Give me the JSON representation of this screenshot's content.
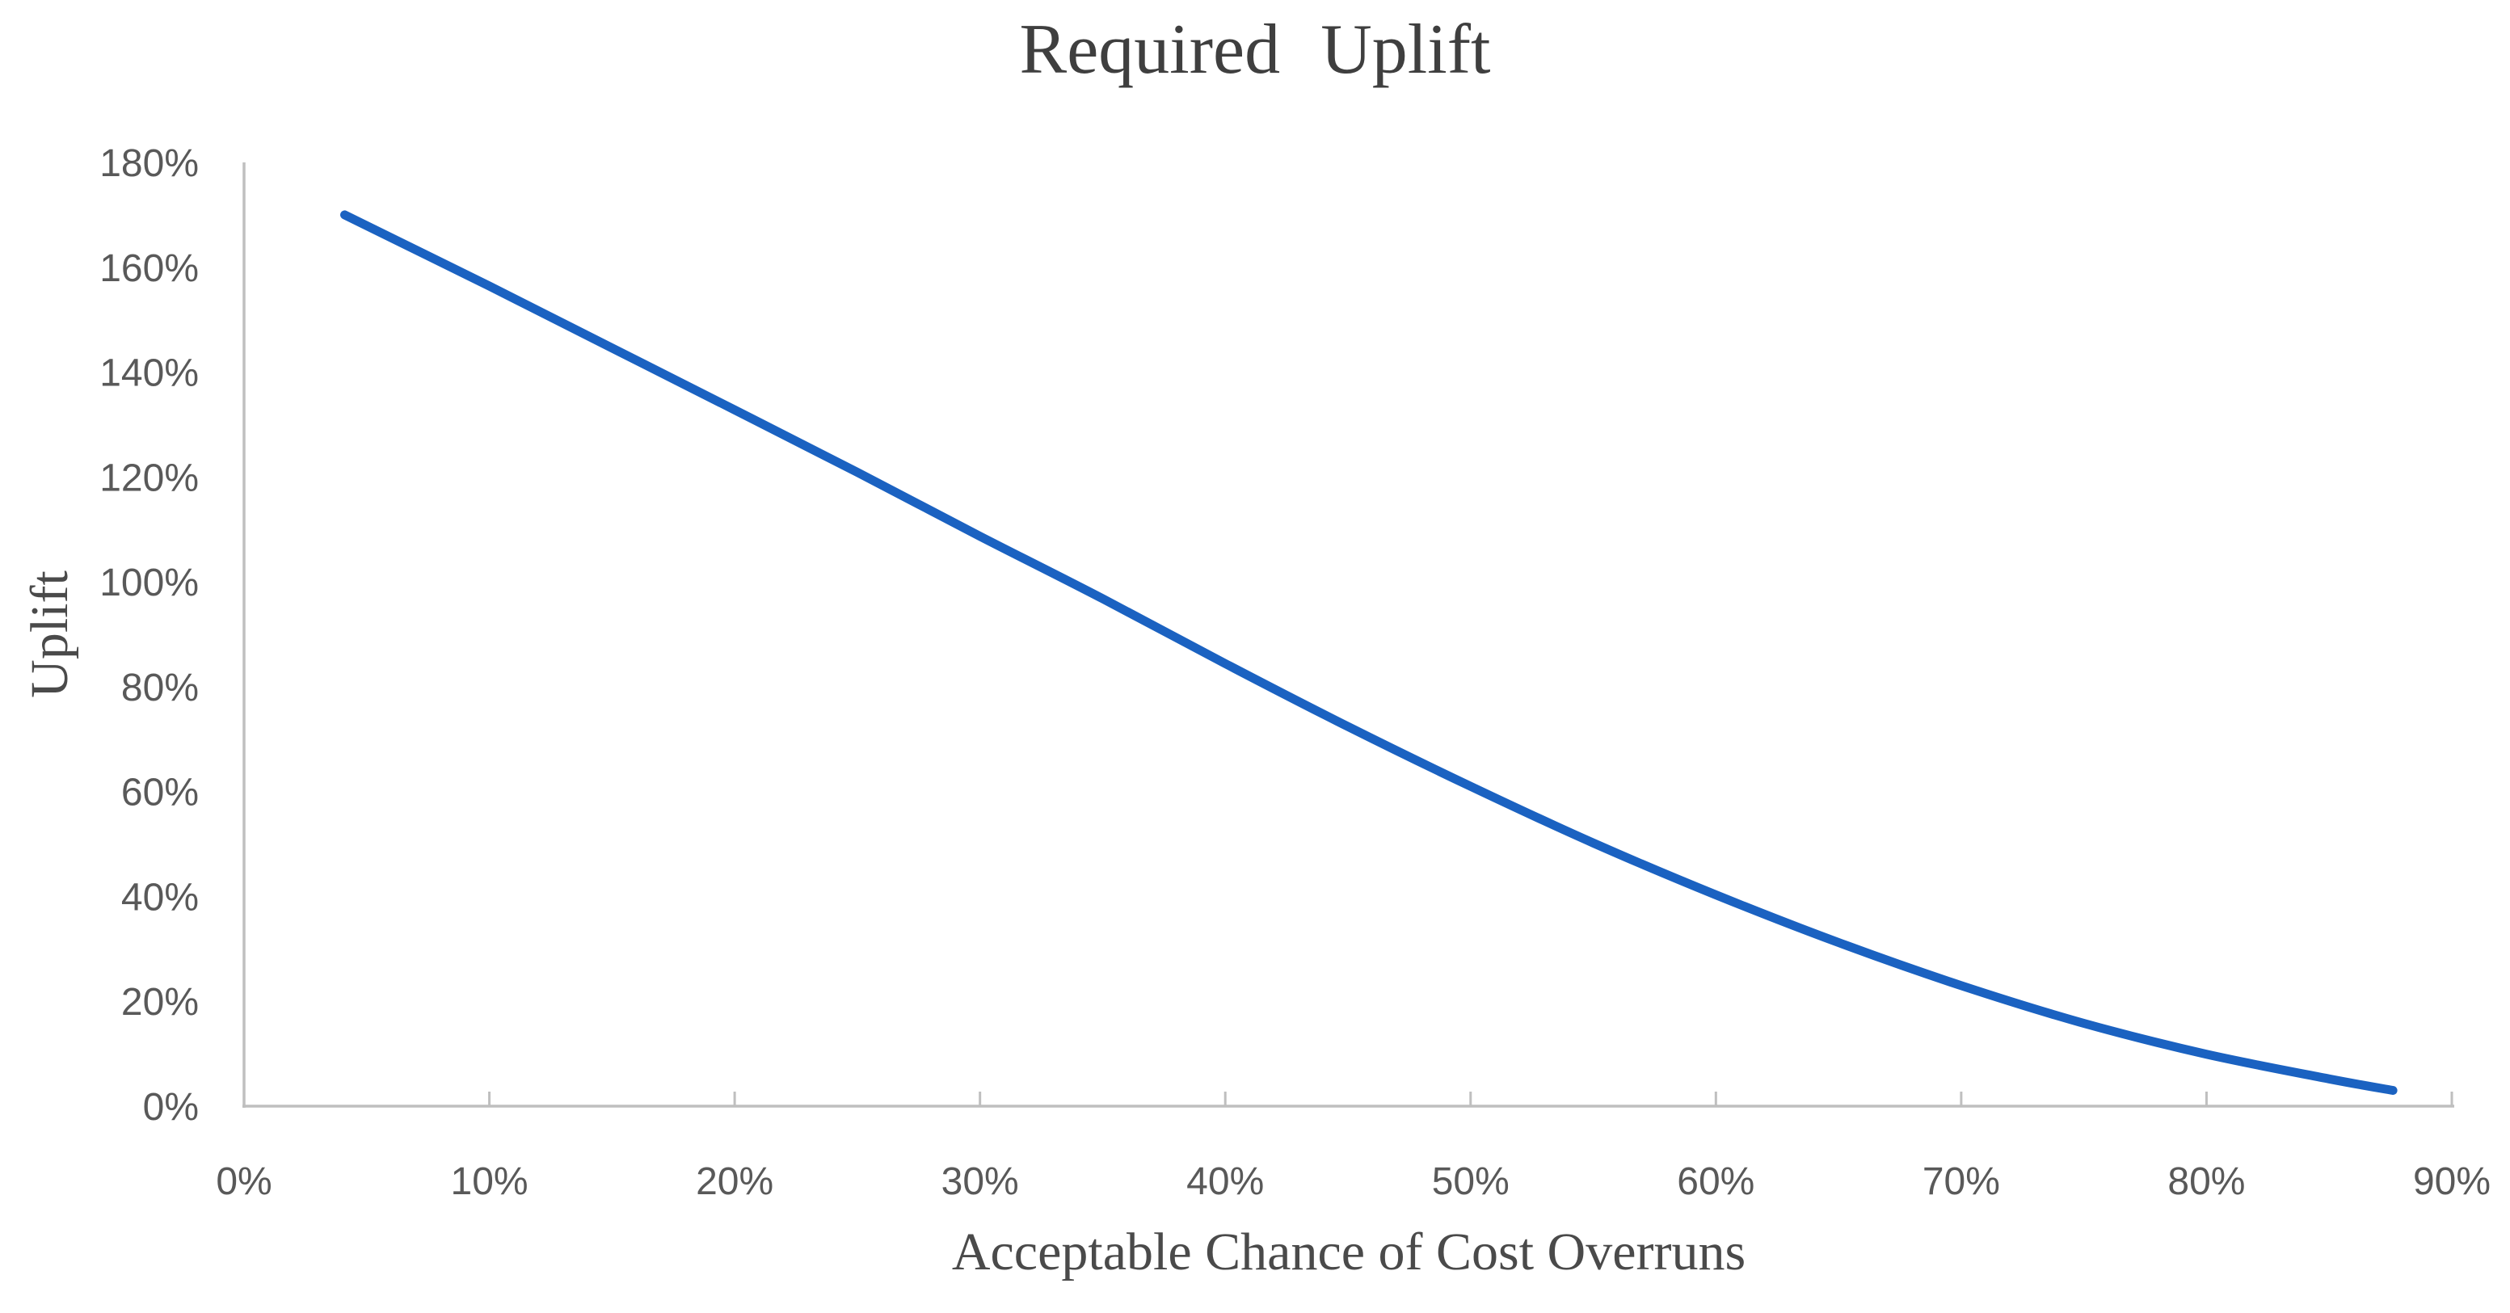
{
  "chart_data": {
    "type": "line",
    "title": "Required Uplift",
    "xlabel": "Acceptable Chance of Cost Overruns",
    "ylabel": "Uplift",
    "xlim": [
      0,
      90
    ],
    "ylim": [
      0,
      180
    ],
    "grid": false,
    "legend": "none",
    "x_ticks": [
      {
        "value": 0,
        "label": "0%"
      },
      {
        "value": 10,
        "label": "10%"
      },
      {
        "value": 20,
        "label": "20%"
      },
      {
        "value": 30,
        "label": "30%"
      },
      {
        "value": 40,
        "label": "40%"
      },
      {
        "value": 50,
        "label": "50%"
      },
      {
        "value": 60,
        "label": "60%"
      },
      {
        "value": 70,
        "label": "70%"
      },
      {
        "value": 80,
        "label": "80%"
      },
      {
        "value": 90,
        "label": "90%"
      }
    ],
    "y_ticks": [
      {
        "value": 0,
        "label": "0%"
      },
      {
        "value": 20,
        "label": "20%"
      },
      {
        "value": 40,
        "label": "40%"
      },
      {
        "value": 60,
        "label": "60%"
      },
      {
        "value": 80,
        "label": "80%"
      },
      {
        "value": 100,
        "label": "100%"
      },
      {
        "value": 120,
        "label": "120%"
      },
      {
        "value": 140,
        "label": "140%"
      },
      {
        "value": 160,
        "label": "160%"
      },
      {
        "value": 180,
        "label": "180%"
      }
    ],
    "series": [
      {
        "name": "required-uplift-curve",
        "color": "#1b62c1",
        "points": [
          [
            4.1,
            170.0
          ],
          [
            10,
            156.4
          ],
          [
            15,
            144.6
          ],
          [
            20,
            132.8
          ],
          [
            25,
            120.9
          ],
          [
            30,
            108.7
          ],
          [
            35,
            96.8
          ],
          [
            40,
            84.4
          ],
          [
            45,
            72.4
          ],
          [
            50,
            61.0
          ],
          [
            55,
            50.2
          ],
          [
            60,
            40.3
          ],
          [
            65,
            31.2
          ],
          [
            70,
            23.0
          ],
          [
            75,
            15.8
          ],
          [
            80,
            9.9
          ],
          [
            85,
            5.2
          ],
          [
            87.6,
            3.0
          ]
        ]
      }
    ],
    "colors": {
      "line": "#1b62c1",
      "axis": "#bfbfbf",
      "tick_label": "#595959",
      "title": "#3f3f3f",
      "axis_title": "#4a4a4a",
      "background": "#ffffff"
    }
  }
}
